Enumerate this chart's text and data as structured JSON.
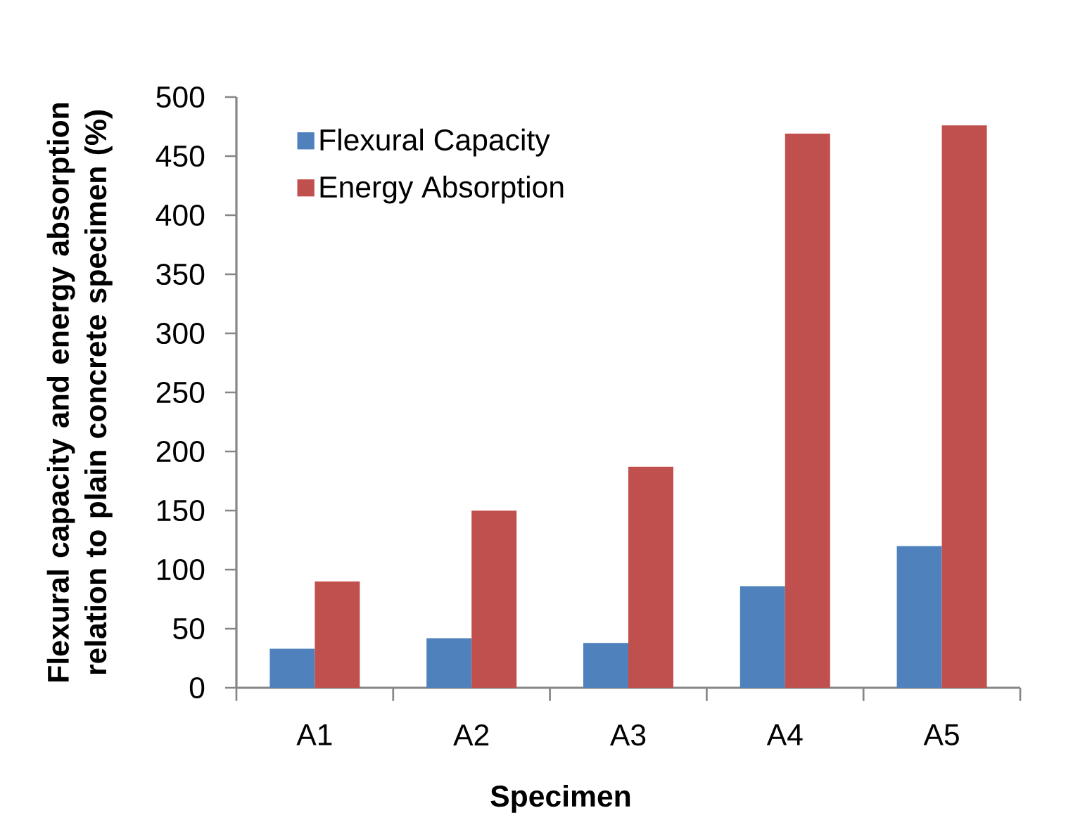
{
  "chart_data": {
    "type": "bar",
    "xlabel": "Specimen",
    "ylabel": "Flexural capacity and energy absorption relation to plain concrete specimen (%)",
    "categories": [
      "A1",
      "A2",
      "A3",
      "A4",
      "A5"
    ],
    "series": [
      {
        "name": "Flexural Capacity",
        "color": "#4f81bd",
        "values": [
          33,
          42,
          38,
          86,
          120
        ]
      },
      {
        "name": "Energy Absorption",
        "color": "#c0504d",
        "values": [
          90,
          150,
          187,
          469,
          476
        ]
      }
    ],
    "ylim": [
      0,
      500
    ],
    "yticks": [
      0,
      50,
      100,
      150,
      200,
      250,
      300,
      350,
      400,
      450,
      500
    ],
    "legend": "top left"
  }
}
